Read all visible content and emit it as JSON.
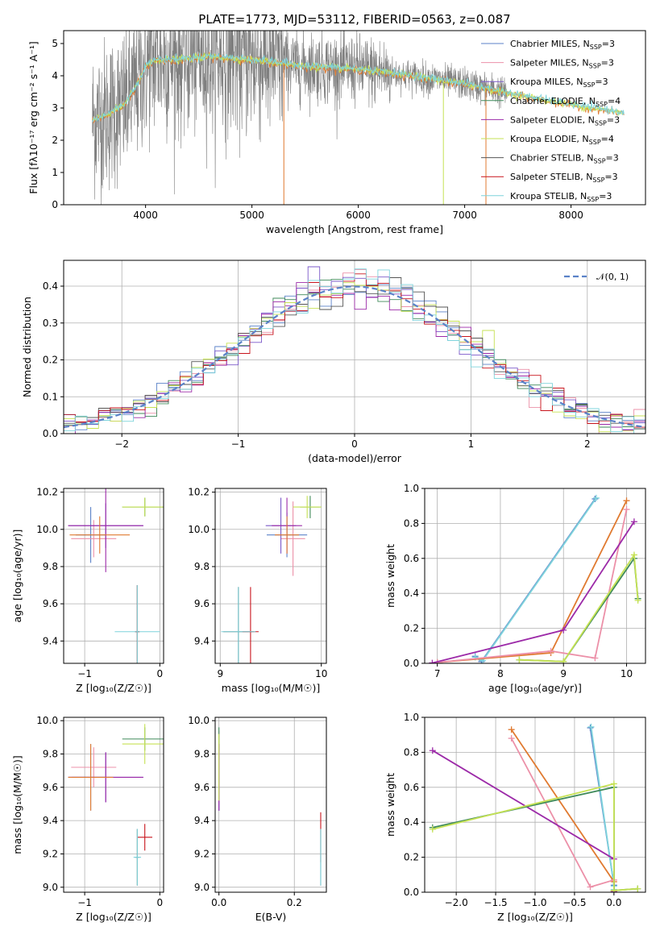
{
  "title": "PLATE=1773, MJD=53112, FIBERID=0563, z=0.087",
  "series_colors": [
    "#5b82c8",
    "#ec90a8",
    "#7b58c9",
    "#3f8a5a",
    "#9c2aa8",
    "#c6e254",
    "#555555",
    "#c8141c",
    "#7fd4dc"
  ],
  "chart_data": [
    {
      "id": "spectrum",
      "type": "line",
      "xlabel": "wavelength [Angstrom, rest frame]",
      "ylabel": "Flux [fλ10⁻¹⁷ erg cm⁻² s⁻¹ A⁻¹]",
      "xlim": [
        3230,
        8700
      ],
      "ylim": [
        0,
        5.4
      ],
      "xticks": [
        "4000",
        "5000",
        "6000",
        "7000",
        "8000"
      ],
      "xtick_values": [
        4000,
        5000,
        6000,
        7000,
        8000
      ],
      "yticks": [
        "0",
        "1",
        "2",
        "3",
        "4",
        "5"
      ],
      "ytick_values": [
        0,
        1,
        2,
        3,
        4,
        5
      ],
      "legend_placement": "upper-right",
      "legend": [
        {
          "name": "Chabrier MILES, N",
          "sub": "SSP",
          "suffix": "=3",
          "color": "#5b82c8"
        },
        {
          "name": "Salpeter MILES, N",
          "sub": "SSP",
          "suffix": "=3",
          "color": "#ec90a8"
        },
        {
          "name": "Kroupa MILES, N",
          "sub": "SSP",
          "suffix": "=3",
          "color": "#7b58c9"
        },
        {
          "name": "Chabrier ELODIE, N",
          "sub": "SSP",
          "suffix": "=4",
          "color": "#3f8a5a"
        },
        {
          "name": "Salpeter ELODIE, N",
          "sub": "SSP",
          "suffix": "=3",
          "color": "#9c2aa8"
        },
        {
          "name": "Kroupa ELODIE, N",
          "sub": "SSP",
          "suffix": "=4",
          "color": "#c6e254"
        },
        {
          "name": "Chabrier STELIB, N",
          "sub": "SSP",
          "suffix": "=3",
          "color": "#555555"
        },
        {
          "name": "Salpeter STELIB, N",
          "sub": "SSP",
          "suffix": "=3",
          "color": "#c8141c"
        },
        {
          "name": "Kroupa STELIB, N",
          "sub": "SSP",
          "suffix": "=3",
          "color": "#7fd4dc"
        }
      ],
      "data_wavelength_range": [
        3500,
        7400
      ],
      "model_wavelength_range": [
        3500,
        8500
      ],
      "continuum": [
        [
          3500,
          2.6
        ],
        [
          3700,
          2.9
        ],
        [
          3800,
          3.1
        ],
        [
          3900,
          3.6
        ],
        [
          4000,
          4.3
        ],
        [
          4100,
          4.5
        ],
        [
          4300,
          4.5
        ],
        [
          4600,
          4.6
        ],
        [
          5000,
          4.5
        ],
        [
          5500,
          4.3
        ],
        [
          6000,
          4.2
        ],
        [
          6500,
          4.0
        ],
        [
          7000,
          3.75
        ],
        [
          7500,
          3.4
        ],
        [
          8000,
          3.1
        ],
        [
          8500,
          2.85
        ]
      ]
    },
    {
      "id": "residuals",
      "type": "histogram",
      "xlabel": "(data-model)/error",
      "ylabel": "Normed distribution",
      "xlim": [
        -2.5,
        2.5
      ],
      "ylim": [
        0,
        0.47
      ],
      "xticks": [
        "−2",
        "−1",
        "0",
        "1",
        "2"
      ],
      "xtick_values": [
        -2,
        -1,
        0,
        1,
        2
      ],
      "yticks": [
        "0.0",
        "0.1",
        "0.2",
        "0.3",
        "0.4"
      ],
      "ytick_values": [
        0,
        0.1,
        0.2,
        0.3,
        0.4
      ],
      "grid": true,
      "legend": [
        {
          "name": "𝒩(0, 1)",
          "color": "#5b82c8",
          "style": "dashed"
        }
      ],
      "legend_placement": "upper-right"
    },
    {
      "id": "age-vs-Z",
      "type": "errorbar",
      "xlabel": "Z [log₁₀(Z/Z☉)]",
      "ylabel": "age  [log₁₀(age/yr)]",
      "xlim": [
        -1.28,
        0.05
      ],
      "ylim": [
        9.28,
        10.22
      ],
      "xticks": [
        "−1",
        "0"
      ],
      "xtick_values": [
        -1,
        0
      ],
      "yticks": [
        "9.4",
        "9.6",
        "9.8",
        "10.0",
        "10.2"
      ],
      "ytick_values": [
        9.4,
        9.6,
        9.8,
        10.0,
        10.2
      ],
      "points": [
        {
          "x": -0.92,
          "xerr": 0.2,
          "y": 9.97,
          "yerr": 0.15,
          "color": "#5b82c8"
        },
        {
          "x": -0.88,
          "xerr": 0.3,
          "y": 9.95,
          "yerr": 0.1,
          "color": "#ec90a8"
        },
        {
          "x": -0.72,
          "xerr": 0.5,
          "y": 10.02,
          "yerr": 0.12,
          "color": "#7b58c9"
        },
        {
          "x": -0.2,
          "xerr": 0.3,
          "y": 10.12,
          "yerr": 0.05,
          "color": "#3f8a5a"
        },
        {
          "x": -0.72,
          "xerr": 0.5,
          "y": 10.02,
          "yerr": 0.25,
          "color": "#9c2aa8"
        },
        {
          "x": -0.2,
          "xerr": 0.3,
          "y": 10.12,
          "yerr": 0.05,
          "color": "#c6e254"
        },
        {
          "x": -0.3,
          "xerr": 0.03,
          "y": 9.45,
          "yerr": 0.25,
          "color": "#555555"
        },
        {
          "x": -0.3,
          "xerr": 0.03,
          "y": 9.45,
          "yerr": 0.25,
          "color": "#c8141c"
        },
        {
          "x": -0.3,
          "xerr": 0.3,
          "y": 9.45,
          "yerr": 0.25,
          "color": "#7fd4dc"
        },
        {
          "x": -0.8,
          "xerr": 0.4,
          "y": 9.97,
          "yerr": 0.1,
          "color": "#e07a30"
        }
      ]
    },
    {
      "id": "age-vs-mass",
      "type": "errorbar",
      "xlabel": "mass [log₁₀(M/M☉)]",
      "ylabel": "",
      "xlim": [
        8.95,
        10.05
      ],
      "ylim": [
        9.28,
        10.22
      ],
      "xticks": [
        "9",
        "10"
      ],
      "xtick_values": [
        9,
        10
      ],
      "yticks": [
        "9.4",
        "9.6",
        "9.8",
        "10.0",
        "10.2"
      ],
      "ytick_values": [
        9.4,
        9.6,
        9.8,
        10.0,
        10.2
      ],
      "points": [
        {
          "x": 9.66,
          "xerr": 0.2,
          "y": 9.97,
          "yerr": 0.12,
          "color": "#5b82c8"
        },
        {
          "x": 9.72,
          "xerr": 0.12,
          "y": 9.95,
          "yerr": 0.2,
          "color": "#ec90a8"
        },
        {
          "x": 9.6,
          "xerr": 0.15,
          "y": 10.02,
          "yerr": 0.15,
          "color": "#7b58c9"
        },
        {
          "x": 9.89,
          "xerr": 0.1,
          "y": 10.12,
          "yerr": 0.06,
          "color": "#3f8a5a"
        },
        {
          "x": 9.66,
          "xerr": 0.15,
          "y": 10.02,
          "yerr": 0.15,
          "color": "#9c2aa8"
        },
        {
          "x": 9.86,
          "xerr": 0.14,
          "y": 10.12,
          "yerr": 0.06,
          "color": "#c6e254"
        },
        {
          "x": 9.18,
          "xerr": 0.15,
          "y": 9.45,
          "yerr": 0.24,
          "color": "#555555"
        },
        {
          "x": 9.3,
          "xerr": 0.08,
          "y": 9.45,
          "yerr": 0.24,
          "color": "#c8141c"
        },
        {
          "x": 9.18,
          "xerr": 0.17,
          "y": 9.45,
          "yerr": 0.24,
          "color": "#7fd4dc"
        },
        {
          "x": 9.66,
          "xerr": 0.12,
          "y": 9.97,
          "yerr": 0.1,
          "color": "#e07a30"
        }
      ]
    },
    {
      "id": "weight-vs-age",
      "type": "line",
      "xlabel": "age  [log₁₀(age/yr)]",
      "ylabel": "mass weight",
      "xlim": [
        6.8,
        10.3
      ],
      "ylim": [
        0,
        1.0
      ],
      "xticks": [
        "7",
        "8",
        "9",
        "10"
      ],
      "xtick_values": [
        7,
        8,
        9,
        10
      ],
      "yticks": [
        "0.0",
        "0.2",
        "0.4",
        "0.6",
        "0.8",
        "1.0"
      ],
      "ytick_values": [
        0,
        0.2,
        0.4,
        0.6,
        0.8,
        1.0
      ],
      "grid": true,
      "series": [
        {
          "color": "#5b82c8",
          "x": [
            7.6,
            7.7,
            9.5
          ],
          "y": [
            0.04,
            0.01,
            0.94
          ]
        },
        {
          "color": "#7fd4dc",
          "x": [
            7.6,
            7.72,
            9.52
          ],
          "y": [
            0.035,
            0.015,
            0.945
          ]
        },
        {
          "color": "#e07a30",
          "x": [
            7.0,
            8.8,
            10.0
          ],
          "y": [
            0.005,
            0.06,
            0.93
          ]
        },
        {
          "color": "#ec90a8",
          "x": [
            7.0,
            8.8,
            9.5,
            10.0
          ],
          "y": [
            0.005,
            0.07,
            0.03,
            0.88
          ]
        },
        {
          "color": "#9c2aa8",
          "x": [
            6.92,
            9.0,
            10.12
          ],
          "y": [
            0.002,
            0.19,
            0.81
          ]
        },
        {
          "color": "#3f8a5a",
          "x": [
            8.3,
            9.0,
            10.12,
            10.18
          ],
          "y": [
            0.02,
            0.01,
            0.6,
            0.37
          ]
        },
        {
          "color": "#c6e254",
          "x": [
            8.3,
            9.0,
            10.12,
            10.18
          ],
          "y": [
            0.02,
            0.01,
            0.62,
            0.36
          ]
        }
      ]
    },
    {
      "id": "mass-vs-Z",
      "type": "errorbar",
      "xlabel": "Z [log₁₀(Z/Z☉)]",
      "ylabel": "mass [log₁₀(M/M☉)]",
      "xlim": [
        -1.28,
        0.05
      ],
      "ylim": [
        8.97,
        10.02
      ],
      "xticks": [
        "−1",
        "0"
      ],
      "xtick_values": [
        -1,
        0
      ],
      "yticks": [
        "9.0",
        "9.2",
        "9.4",
        "9.6",
        "9.8",
        "10.0"
      ],
      "ytick_values": [
        9.0,
        9.2,
        9.4,
        9.6,
        9.8,
        10.0
      ],
      "points": [
        {
          "x": -0.92,
          "xerr": 0.25,
          "y": 9.66,
          "yerr": 0.2,
          "color": "#5b82c8"
        },
        {
          "x": -0.88,
          "xerr": 0.3,
          "y": 9.72,
          "yerr": 0.12,
          "color": "#ec90a8"
        },
        {
          "x": -0.72,
          "xerr": 0.5,
          "y": 9.66,
          "yerr": 0.15,
          "color": "#7b58c9"
        },
        {
          "x": -0.2,
          "xerr": 0.3,
          "y": 9.89,
          "yerr": 0.07,
          "color": "#3f8a5a"
        },
        {
          "x": -0.72,
          "xerr": 0.5,
          "y": 9.66,
          "yerr": 0.15,
          "color": "#9c2aa8"
        },
        {
          "x": -0.2,
          "xerr": 0.3,
          "y": 9.86,
          "yerr": 0.12,
          "color": "#c6e254"
        },
        {
          "x": -0.3,
          "xerr": 0.03,
          "y": 9.18,
          "yerr": 0.17,
          "color": "#555555"
        },
        {
          "x": -0.2,
          "xerr": 0.1,
          "y": 9.3,
          "yerr": 0.08,
          "color": "#c8141c"
        },
        {
          "x": -0.3,
          "xerr": 0.05,
          "y": 9.18,
          "yerr": 0.17,
          "color": "#7fd4dc"
        },
        {
          "x": -0.92,
          "xerr": 0.3,
          "y": 9.66,
          "yerr": 0.2,
          "color": "#e07a30"
        }
      ]
    },
    {
      "id": "mass-vs-ebv",
      "type": "errorbar",
      "xlabel": "E(B-V)",
      "ylabel": "",
      "xlim": [
        -0.01,
        0.285
      ],
      "ylim": [
        8.97,
        10.02
      ],
      "xticks": [
        "0.0",
        "0.2"
      ],
      "xtick_values": [
        0,
        0.2
      ],
      "yticks": [
        "9.0",
        "9.2",
        "9.4",
        "9.6",
        "9.8",
        "10.0"
      ],
      "ytick_values": [
        9.0,
        9.2,
        9.4,
        9.6,
        9.8,
        10.0
      ],
      "points": [
        {
          "x": 0.0,
          "xerr": 0,
          "y": 9.66,
          "yerr": 0.2,
          "color": "#5b82c8"
        },
        {
          "x": 0.0,
          "xerr": 0,
          "y": 9.72,
          "yerr": 0.22,
          "color": "#ec90a8"
        },
        {
          "x": 0.0,
          "xerr": 0,
          "y": 9.66,
          "yerr": 0.2,
          "color": "#7b58c9"
        },
        {
          "x": 0.0,
          "xerr": 0,
          "y": 9.89,
          "yerr": 0.07,
          "color": "#3f8a5a"
        },
        {
          "x": 0.0,
          "xerr": 0,
          "y": 9.66,
          "yerr": 0.2,
          "color": "#9c2aa8"
        },
        {
          "x": 0.0,
          "xerr": 0,
          "y": 9.72,
          "yerr": 0.2,
          "color": "#c6e254"
        },
        {
          "x": 0.27,
          "xerr": 0,
          "y": 9.18,
          "yerr": 0.17,
          "color": "#555555"
        },
        {
          "x": 0.27,
          "xerr": 0,
          "y": 9.3,
          "yerr": 0.15,
          "color": "#c8141c"
        },
        {
          "x": 0.27,
          "xerr": 0,
          "y": 9.18,
          "yerr": 0.17,
          "color": "#7fd4dc"
        }
      ]
    },
    {
      "id": "weight-vs-Z",
      "type": "line",
      "xlabel": "Z [log₁₀(Z/Z☉)]",
      "ylabel": "mass weight",
      "xlim": [
        -2.4,
        0.4
      ],
      "ylim": [
        0,
        1.0
      ],
      "xticks": [
        "−2.0",
        "−1.5",
        "−1.0",
        "−0.5",
        "0.0"
      ],
      "xtick_values": [
        -2,
        -1.5,
        -1,
        -0.5,
        0
      ],
      "yticks": [
        "0.0",
        "0.2",
        "0.4",
        "0.6",
        "0.8",
        "1.0"
      ],
      "ytick_values": [
        0,
        0.2,
        0.4,
        0.6,
        0.8,
        1.0
      ],
      "grid": true,
      "series": [
        {
          "color": "#5b82c8",
          "x": [
            -0.3,
            0.0,
            0.0
          ],
          "y": [
            0.94,
            0.04,
            0.01
          ]
        },
        {
          "color": "#7fd4dc",
          "x": [
            -0.29,
            0.0,
            0.0
          ],
          "y": [
            0.945,
            0.035,
            0.015
          ]
        },
        {
          "color": "#e07a30",
          "x": [
            -1.3,
            0.0,
            0.0
          ],
          "y": [
            0.93,
            0.06,
            0.005
          ]
        },
        {
          "color": "#ec90a8",
          "x": [
            -1.3,
            -0.3,
            0.0,
            0.0
          ],
          "y": [
            0.88,
            0.03,
            0.07,
            0.005
          ]
        },
        {
          "color": "#9c2aa8",
          "x": [
            -2.3,
            0.0,
            0.0
          ],
          "y": [
            0.81,
            0.19,
            0.002
          ]
        },
        {
          "color": "#3f8a5a",
          "x": [
            -2.3,
            0.0,
            0.0,
            0.3
          ],
          "y": [
            0.37,
            0.6,
            0.01,
            0.02
          ]
        },
        {
          "color": "#c6e254",
          "x": [
            -2.3,
            0.0,
            0.0,
            0.3
          ],
          "y": [
            0.36,
            0.62,
            0.01,
            0.02
          ]
        }
      ]
    }
  ]
}
